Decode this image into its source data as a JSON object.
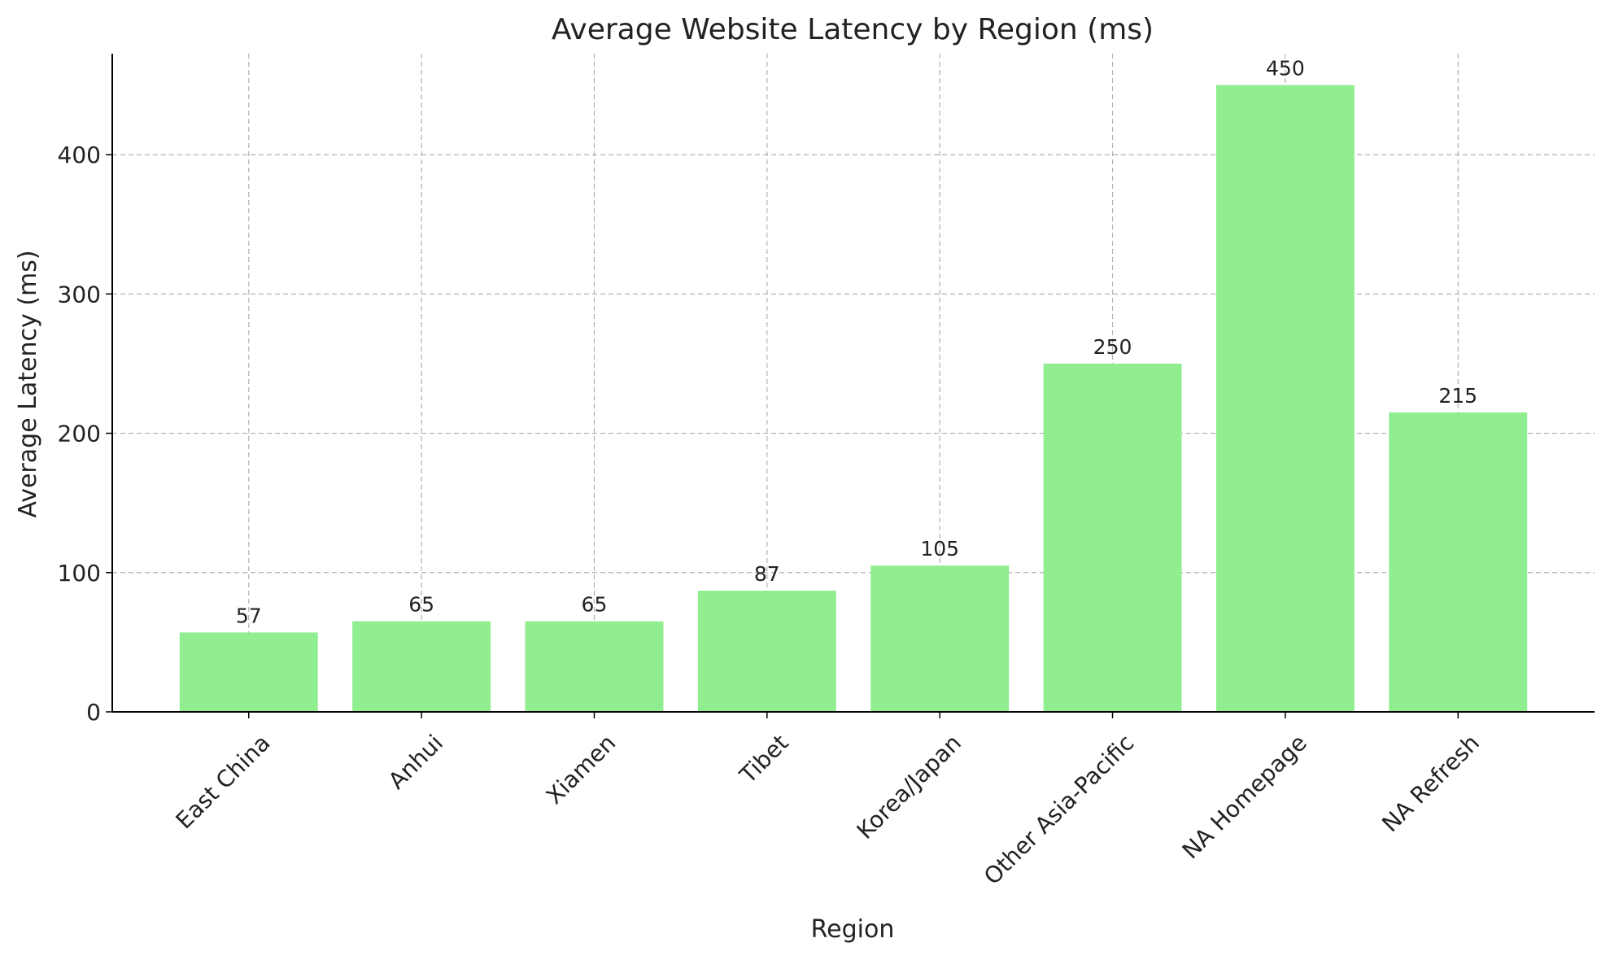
{
  "chart_data": {
    "type": "bar",
    "title": "Average Website Latency by Region (ms)",
    "x_label": "Region",
    "y_label": "Average Latency (ms)",
    "categories": [
      "East China",
      "Anhui",
      "Xiamen",
      "Tibet",
      "Korea/Japan",
      "Other Asia-Pacific",
      "NA Homepage",
      "NA Refresh"
    ],
    "values": [
      57,
      65,
      65,
      87,
      105,
      250,
      450,
      215
    ],
    "color": "#90ee90",
    "ylim": [
      0,
      472.5
    ],
    "yticks": [
      0,
      100,
      200,
      300,
      400
    ],
    "grid": true
  }
}
